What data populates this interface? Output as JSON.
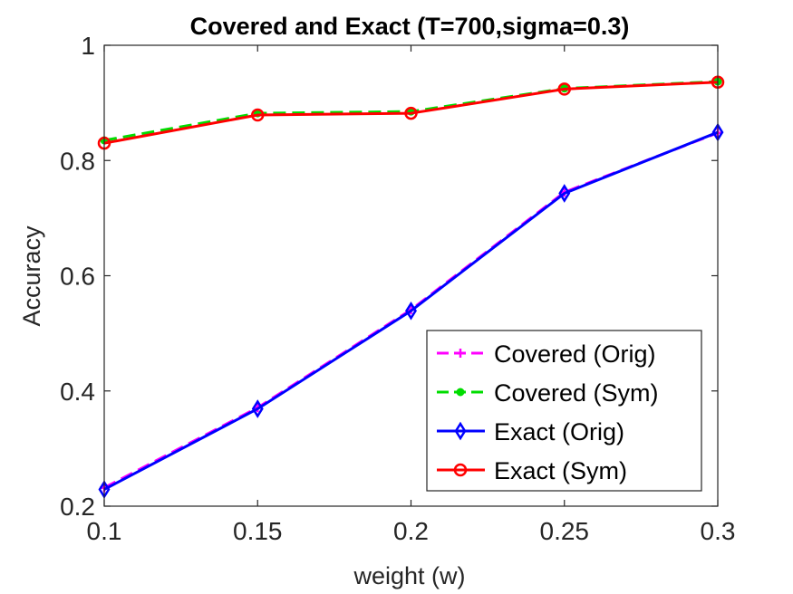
{
  "chart_data": {
    "type": "line",
    "title": "Covered and Exact (T=700,sigma=0.3)",
    "xlabel": "weight (w)",
    "ylabel": "Accuracy",
    "xlim": [
      0.1,
      0.3
    ],
    "ylim": [
      0.2,
      1.0
    ],
    "xticks": [
      0.1,
      0.15,
      0.2,
      0.25,
      0.3
    ],
    "xtick_labels": [
      "0.1",
      "0.15",
      "0.2",
      "0.25",
      "0.3"
    ],
    "yticks": [
      0.2,
      0.4,
      0.6,
      0.8,
      1.0
    ],
    "ytick_labels": [
      "0.2",
      "0.4",
      "0.6",
      "0.8",
      "1"
    ],
    "grid": false,
    "legend_position": "bottom-right",
    "x": [
      0.1,
      0.15,
      0.2,
      0.25,
      0.3
    ],
    "series": [
      {
        "name": "Covered (Orig)",
        "values": [
          0.232,
          0.371,
          0.541,
          0.745,
          0.848
        ],
        "color": "#ff00ff",
        "line_style": "dashed",
        "marker": "plus"
      },
      {
        "name": "Covered (Sym)",
        "values": [
          0.835,
          0.882,
          0.885,
          0.925,
          0.937
        ],
        "color": "#00dd00",
        "line_style": "dashed",
        "marker": "dot"
      },
      {
        "name": "Exact (Orig)",
        "values": [
          0.229,
          0.369,
          0.539,
          0.743,
          0.849
        ],
        "color": "#0000ff",
        "line_style": "solid",
        "marker": "diamond"
      },
      {
        "name": "Exact (Sym)",
        "values": [
          0.83,
          0.879,
          0.882,
          0.924,
          0.936
        ],
        "color": "#ff0000",
        "line_style": "solid",
        "marker": "circle"
      }
    ]
  }
}
